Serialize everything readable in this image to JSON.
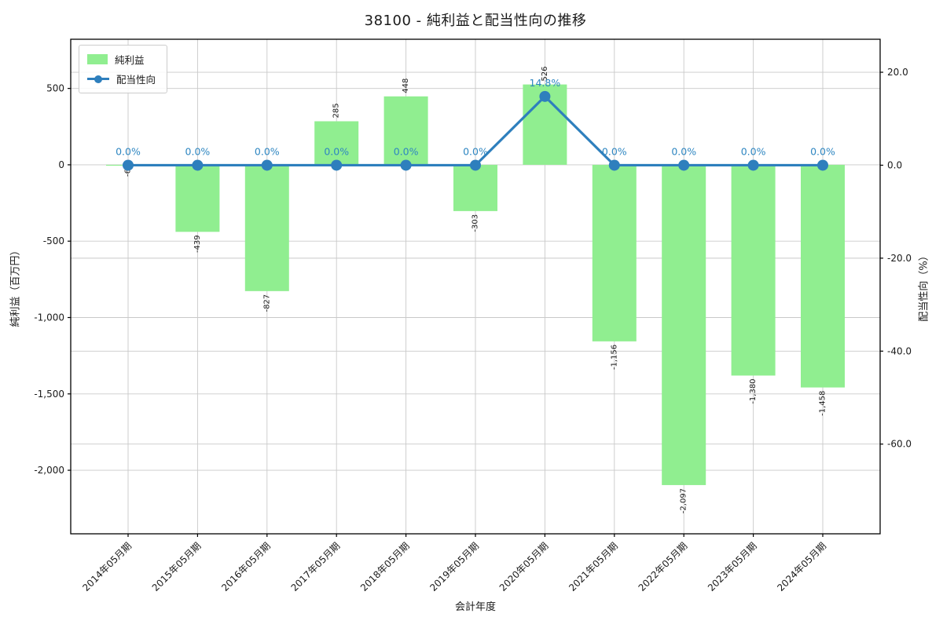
{
  "chart_data": {
    "type": "bar",
    "title": "38100 - 純利益と配当性向の推移",
    "xlabel": "会計年度",
    "ylabel_left": "純利益（百万円）",
    "ylabel_right": "配当性向（%）",
    "categories": [
      "2014年05月期",
      "2015年05月期",
      "2016年05月期",
      "2017年05月期",
      "2018年05月期",
      "2019年05月期",
      "2020年05月期",
      "2021年05月期",
      "2022年05月期",
      "2023年05月期",
      "2024年05月期"
    ],
    "series": [
      {
        "name": "純利益",
        "type": "bar",
        "axis": "left",
        "values": [
          -6,
          -439,
          -827,
          285,
          448,
          -303,
          526,
          -1156,
          -2097,
          -1380,
          -1458
        ],
        "labels": [
          "-6",
          "-439",
          "-827",
          "285",
          "448",
          "-303",
          "526",
          "-1,156",
          "-2,097",
          "-1,380",
          "-1,458"
        ]
      },
      {
        "name": "配当性向",
        "type": "line",
        "axis": "right",
        "values": [
          0,
          0,
          0,
          0,
          0,
          0,
          14.8,
          0,
          0,
          0,
          0
        ],
        "labels": [
          "0.0%",
          "0.0%",
          "0.0%",
          "0.0%",
          "0.0%",
          "0.0%",
          "14.8%",
          "0.0%",
          "0.0%",
          "0.0%",
          "0.0%"
        ]
      }
    ],
    "left_axis": {
      "ticks": [
        500,
        0,
        -500,
        -1000,
        -1500,
        -2000
      ],
      "tick_labels": [
        "500",
        "0",
        "-500",
        "-1,000",
        "-1,500",
        "-2,000"
      ],
      "min": -2416,
      "max": 822
    },
    "right_axis": {
      "ticks": [
        20,
        0,
        -20,
        -40,
        -60
      ],
      "tick_labels": [
        "20.0",
        "0.0",
        "-20.0",
        "-40.0",
        "-60.0"
      ],
      "min": -79.3,
      "max": 27.1
    },
    "grid": true,
    "legend_position": "upper-left",
    "colors": {
      "bar": "#90ee90",
      "line": "#2e7fbd",
      "pct_label": "#2e86c1",
      "bar_label": "#1a1a1a",
      "grid": "#c9c9c9",
      "spine": "#000000",
      "tick_text": "#1a1a1a"
    }
  }
}
